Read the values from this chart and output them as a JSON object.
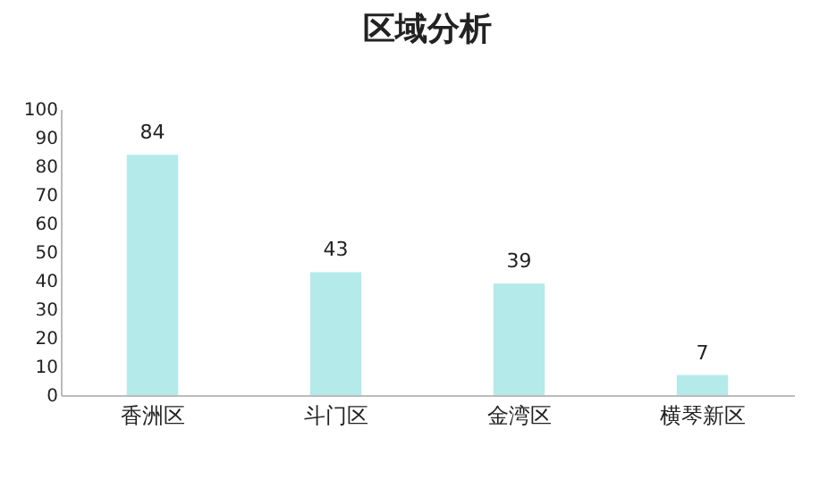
{
  "chart_data": {
    "type": "bar",
    "title": "区域分析",
    "categories": [
      "香洲区",
      "斗门区",
      "金湾区",
      "横琴新区"
    ],
    "values": [
      84,
      43,
      39,
      7
    ],
    "color": "#b4eaea",
    "ylim": [
      0,
      100
    ],
    "yticks": [
      0,
      10,
      20,
      30,
      40,
      50,
      60,
      70,
      80,
      90,
      100
    ],
    "grid": false,
    "data_labels": true
  }
}
